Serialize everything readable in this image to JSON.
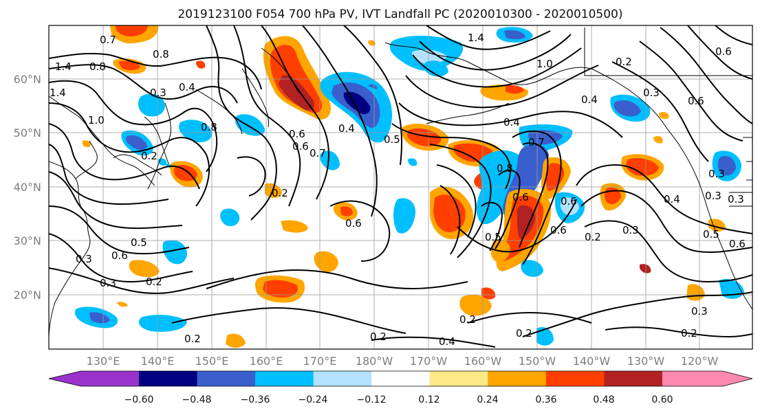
{
  "title": "2019123100 F054 700 hPa PV, IVT Landfall PC (2020010300 - 2020010500)",
  "lat_labels": [
    "60°N",
    "50°N",
    "40°N",
    "30°N",
    "20°N"
  ],
  "lon_labels": [
    "130°E",
    "140°E",
    "150°E",
    "160°E",
    "170°E",
    "180°W",
    "170°W",
    "160°W",
    "150°W",
    "140°W",
    "130°W",
    "120°W"
  ],
  "colorbar": {
    "colors": [
      "#9933cc",
      "#000080",
      "#3a5fcd",
      "#00bfff",
      "#b2e2ff",
      "#ffffff",
      "#ffe887",
      "#ffa500",
      "#ff3f00",
      "#b22222",
      "#ff88b0"
    ],
    "ticks": [
      "−0.60",
      "−0.48",
      "−0.36",
      "−0.24",
      "−0.12",
      "0.12",
      "0.24",
      "0.36",
      "0.48",
      "0.60"
    ]
  },
  "contour_labels": [
    "0.7",
    "0.8",
    "1.4",
    "0.8",
    "0.4",
    "1.4",
    "1.0",
    "0.8",
    "0.3",
    "0.2",
    "1.4",
    "1.0",
    "0.6",
    "0.4",
    "0.3",
    "0.6",
    "0.3",
    "0.4",
    "0.6",
    "0.6",
    "0.7",
    "0.4",
    "0.5",
    "0.8",
    "0.7",
    "0.6",
    "0.5",
    "0.6",
    "0.6",
    "0.2",
    "0.3",
    "0.4",
    "0.3",
    "0.3",
    "0.5",
    "0.6",
    "0.5",
    "0.6",
    "0.3",
    "0.3",
    "0.2",
    "0.2",
    "0.4",
    "0.2",
    "0.2",
    "0.2",
    "0.3",
    "0.2",
    "0.2",
    "0.6",
    "0.2"
  ]
}
